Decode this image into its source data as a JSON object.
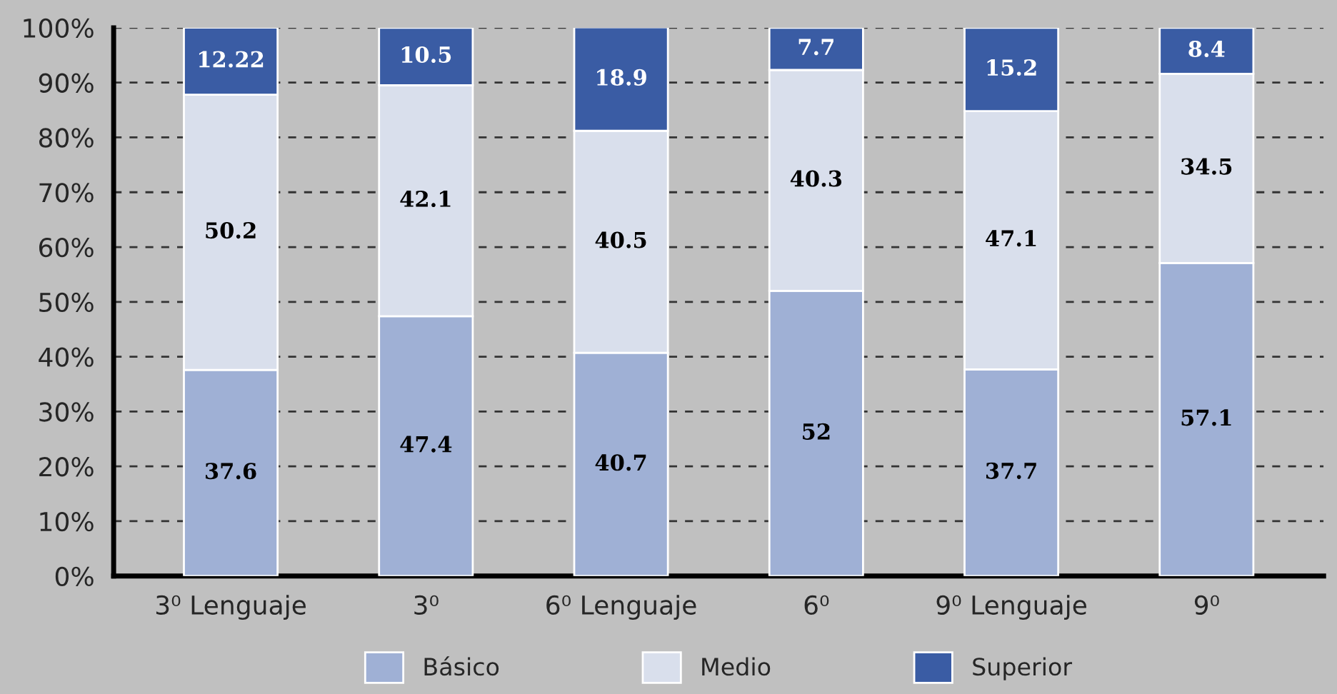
{
  "chart_data": {
    "type": "bar",
    "stacked": true,
    "data_labels": true,
    "categories": [
      "3⁰ Lenguaje",
      "3⁰",
      "6⁰ Lenguaje",
      "6⁰",
      "9⁰ Lenguaje",
      "9⁰"
    ],
    "series": [
      {
        "name": "Básico",
        "color": "#9fb0d5",
        "values": [
          37.6,
          47.4,
          40.7,
          52,
          37.7,
          57.1
        ]
      },
      {
        "name": "Medio",
        "color": "#d9dfec",
        "values": [
          50.2,
          42.1,
          40.5,
          40.3,
          47.1,
          34.5
        ]
      },
      {
        "name": "Superior",
        "color": "#3a5ca4",
        "values": [
          12.22,
          10.5,
          18.9,
          7.7,
          15.2,
          8.4
        ]
      }
    ],
    "ylim": [
      0,
      100
    ],
    "yticks": [
      {
        "value": 0,
        "label": "0%"
      },
      {
        "value": 10,
        "label": "10%"
      },
      {
        "value": 20,
        "label": "20%"
      },
      {
        "value": 30,
        "label": "30%"
      },
      {
        "value": 40,
        "label": "40%"
      },
      {
        "value": 50,
        "label": "50%"
      },
      {
        "value": 60,
        "label": "60%"
      },
      {
        "value": 70,
        "label": "70%"
      },
      {
        "value": 80,
        "label": "80%"
      },
      {
        "value": 90,
        "label": "90%"
      },
      {
        "value": 100,
        "label": "100%"
      }
    ],
    "grid": "y",
    "line_style": "dashed",
    "legend": "bottom"
  }
}
